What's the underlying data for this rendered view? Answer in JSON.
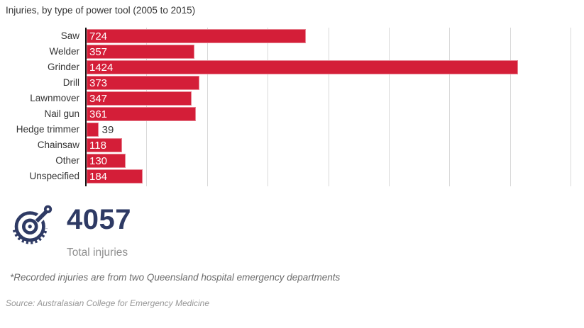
{
  "title": "Injuries, by type of power tool (2005 to 2015)",
  "chart_data": {
    "type": "bar",
    "orientation": "horizontal",
    "title": "Injuries, by type of power tool (2005 to 2015)",
    "categories": [
      "Saw",
      "Welder",
      "Grinder",
      "Drill",
      "Lawnmover",
      "Nail gun",
      "Hedge trimmer",
      "Chainsaw",
      "Other",
      "Unspecified"
    ],
    "values": [
      724,
      357,
      1424,
      373,
      347,
      361,
      39,
      118,
      130,
      184
    ],
    "xlabel": "",
    "ylabel": "",
    "xlim": [
      0,
      1600
    ],
    "grid": true,
    "grid_step": 200,
    "legend": "none",
    "bar_color": "#d41e38",
    "value_labels": "shown at bar start, inside bar (outside for small bars)"
  },
  "summary": {
    "icon": "circular-saw-icon",
    "total_value": "4057",
    "total_label": "Total injuries"
  },
  "footnote": "*Recorded injuries are from two Queensland hospital emergency departments",
  "source": "Source: Australasian College for Emergency Medicine",
  "colors": {
    "bar": "#d41e38",
    "accent_navy": "#2e3a64",
    "gridline": "#d9d9d9",
    "axis": "#141414",
    "text_dark": "#333333",
    "text_gray": "#8f8f8f",
    "footnote_gray": "#6b6b6b",
    "source_gray": "#979797"
  }
}
